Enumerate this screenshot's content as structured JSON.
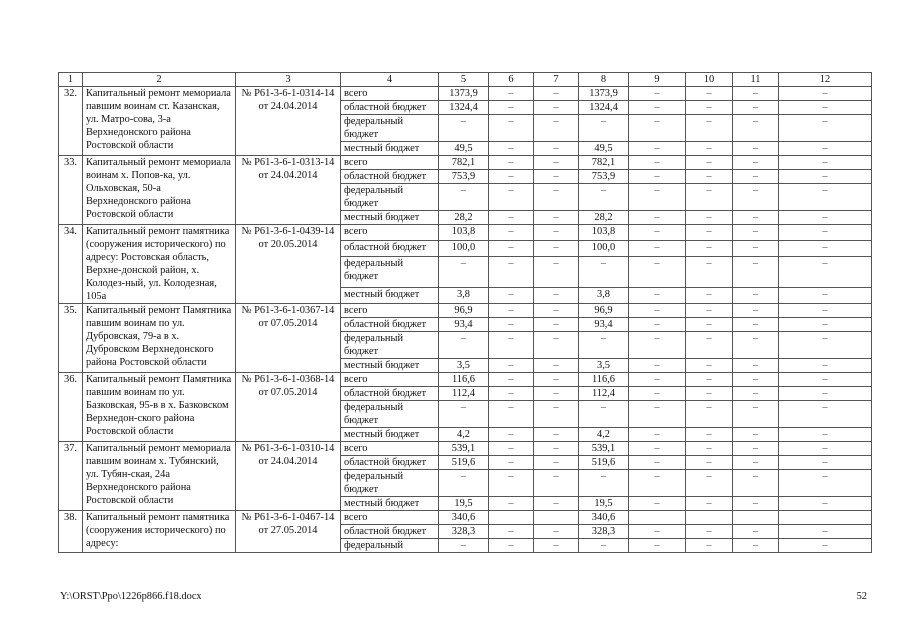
{
  "table": {
    "header": [
      "1",
      "2",
      "3",
      "4",
      "5",
      "6",
      "7",
      "8",
      "9",
      "10",
      "11",
      "12"
    ],
    "entries": [
      {
        "num": "32.",
        "name": "Капитальный ремонт мемориала павшим воинам ст. Казанская, ул. Матро-сова, 3-а Верхнедонского района Ростовской области",
        "doc": [
          "№ Р61-3-6-1-0314-14",
          "от 24.04.2014"
        ],
        "budgets": [
          {
            "label": "всего",
            "values": [
              "1373,9",
              "–",
              "–",
              "1373,9",
              "–",
              "–",
              "–",
              "–"
            ]
          },
          {
            "label": "областной бюджет",
            "values": [
              "1324,4",
              "–",
              "–",
              "1324,4",
              "–",
              "–",
              "–",
              "–"
            ]
          },
          {
            "label": "федеральный бюджет",
            "values": [
              "–",
              "–",
              "–",
              "–",
              "–",
              "–",
              "–",
              "–"
            ]
          },
          {
            "label": "местный бюджет",
            "values": [
              "49,5",
              "–",
              "–",
              "49,5",
              "–",
              "–",
              "–",
              "–"
            ]
          }
        ]
      },
      {
        "num": "33.",
        "name": "Капитальный ремонт мемориала воинам х. Попов-ка, ул. Ольховская, 50-а Верхнедонского района Ростовской области",
        "doc": [
          "№ Р61-3-6-1-0313-14",
          "от 24.04.2014"
        ],
        "budgets": [
          {
            "label": "всего",
            "values": [
              "782,1",
              "–",
              "–",
              "782,1",
              "–",
              "–",
              "–",
              "–"
            ]
          },
          {
            "label": "областной бюджет",
            "values": [
              "753,9",
              "–",
              "–",
              "753,9",
              "–",
              "–",
              "–",
              "–"
            ]
          },
          {
            "label": "федеральный бюджет",
            "values": [
              "–",
              "–",
              "–",
              "–",
              "–",
              "–",
              "–",
              "–"
            ]
          },
          {
            "label": "местный бюджет",
            "values": [
              "28,2",
              "–",
              "–",
              "28,2",
              "–",
              "–",
              "–",
              "–"
            ]
          }
        ]
      },
      {
        "num": "34.",
        "name": "Капитальный ремонт памятника (сооружения исторического) по адресу: Ростовская область, Верхне-донской район, х. Колодез-ный, ул. Колодезная, 105а",
        "doc": [
          "№ Р61-3-6-1-0439-14",
          "от 20.05.2014"
        ],
        "budgets": [
          {
            "label": "всего",
            "values": [
              "103,8",
              "–",
              "–",
              "103,8",
              "–",
              "–",
              "–",
              "–"
            ]
          },
          {
            "label": "областной бюджет",
            "values": [
              "100,0",
              "–",
              "–",
              "100,0",
              "–",
              "–",
              "–",
              "–"
            ]
          },
          {
            "label": "федеральный бюджет",
            "values": [
              "–",
              "–",
              "–",
              "–",
              "–",
              "–",
              "–",
              "–"
            ]
          },
          {
            "label": "местный бюджет",
            "values": [
              "3,8",
              "–",
              "–",
              "3,8",
              "–",
              "–",
              "–",
              "–"
            ]
          }
        ]
      },
      {
        "num": "35.",
        "name": "Капитальный ремонт Памятника павшим воинам по ул. Дубровская, 79-а в х. Дубровском Верхнедонского района Ростовской области",
        "doc": [
          "№ Р61-3-6-1-0367-14",
          "от 07.05.2014"
        ],
        "budgets": [
          {
            "label": "всего",
            "values": [
              "96,9",
              "–",
              "–",
              "96,9",
              "–",
              "–",
              "–",
              "–"
            ]
          },
          {
            "label": "областной бюджет",
            "values": [
              "93,4",
              "–",
              "–",
              "93,4",
              "–",
              "–",
              "–",
              "–"
            ]
          },
          {
            "label": "федеральный бюджет",
            "values": [
              "–",
              "–",
              "–",
              "–",
              "–",
              "–",
              "–",
              "–"
            ]
          },
          {
            "label": "местный бюджет",
            "values": [
              "3,5",
              "–",
              "–",
              "3,5",
              "–",
              "–",
              "–",
              "–"
            ]
          }
        ]
      },
      {
        "num": "36.",
        "name": "Капитальный ремонт Памятника павшим воинам по ул. Базковская, 95-в в х. Базковском Верхнедон-ского района Ростовской области",
        "doc": [
          "№ Р61-3-6-1-0368-14",
          "от 07.05.2014"
        ],
        "budgets": [
          {
            "label": "всего",
            "values": [
              "116,6",
              "–",
              "–",
              "116,6",
              "–",
              "–",
              "–",
              "–"
            ]
          },
          {
            "label": "областной бюджет",
            "values": [
              "112,4",
              "–",
              "–",
              "112,4",
              "–",
              "–",
              "–",
              "–"
            ]
          },
          {
            "label": "федеральный бюджет",
            "values": [
              "–",
              "–",
              "–",
              "–",
              "–",
              "–",
              "–",
              "–"
            ]
          },
          {
            "label": "местный бюджет",
            "values": [
              "4,2",
              "–",
              "–",
              "4,2",
              "–",
              "–",
              "–",
              "–"
            ]
          }
        ]
      },
      {
        "num": "37.",
        "name": "Капитальный ремонт мемориала павшим воинам х. Тубянский, ул. Тубян-ская, 24а Верхнедонского района Ростовской области",
        "doc": [
          "№ Р61-3-6-1-0310-14",
          "от 24.04.2014"
        ],
        "budgets": [
          {
            "label": "всего",
            "values": [
              "539,1",
              "–",
              "–",
              "539,1",
              "–",
              "–",
              "–",
              "–"
            ]
          },
          {
            "label": "областной бюджет",
            "values": [
              "519,6",
              "–",
              "–",
              "519,6",
              "–",
              "–",
              "–",
              "–"
            ]
          },
          {
            "label": "федеральный бюджет",
            "values": [
              "–",
              "–",
              "–",
              "–",
              "–",
              "–",
              "–",
              "–"
            ]
          },
          {
            "label": "местный бюджет",
            "values": [
              "19,5",
              "–",
              "–",
              "19,5",
              "–",
              "–",
              "–",
              "–"
            ]
          }
        ]
      },
      {
        "num": "38.",
        "name": "Капитальный ремонт памятника (сооружения исторического) по адресу:",
        "doc": [
          "№ Р61-3-6-1-0467-14",
          "от 27.05.2014"
        ],
        "budgets": [
          {
            "label": "всего",
            "values": [
              "340,6",
              "",
              "",
              "340,6",
              "",
              "",
              "",
              ""
            ]
          },
          {
            "label": "областной бюджет",
            "values": [
              "328,3",
              "–",
              "–",
              "328,3",
              "–",
              "–",
              "–",
              "–"
            ]
          },
          {
            "label": "федеральный",
            "values": [
              "–",
              "–",
              "–",
              "–",
              "–",
              "–",
              "–",
              "–"
            ]
          }
        ]
      }
    ]
  },
  "footer": {
    "path": "Y:\\ORST\\Ppo\\1226p866.f18.docx",
    "page": "52"
  }
}
